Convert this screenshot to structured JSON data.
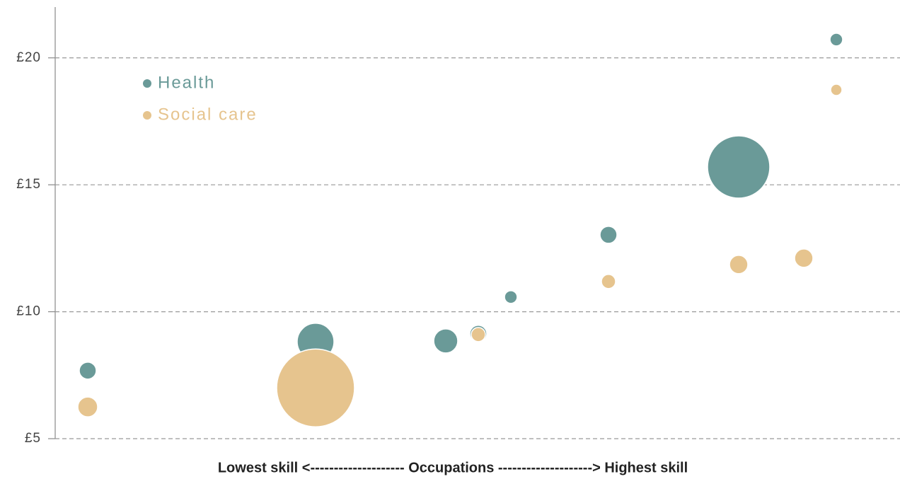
{
  "chart_data": {
    "type": "scatter",
    "x_label": "Lowest skill <--------------------  Occupations  --------------------> Highest skill",
    "xlim": [
      0,
      26
    ],
    "ylim": [
      5,
      22
    ],
    "yticks": [
      {
        "value": 5,
        "label": "£5"
      },
      {
        "value": 10,
        "label": "£10"
      },
      {
        "value": 15,
        "label": "£15"
      },
      {
        "value": 20,
        "label": "£20"
      }
    ],
    "grid": true,
    "legend": "upper left",
    "series": [
      {
        "name": "Health",
        "color": "#6a9a98",
        "x": [
          1,
          8,
          12,
          13,
          14,
          17,
          21,
          24
        ],
        "values": [
          7.68,
          8.82,
          8.85,
          9.13,
          10.58,
          13.03,
          15.7,
          20.72
        ],
        "sizes": [
          36,
          169,
          72,
          36,
          20,
          36,
          484,
          20
        ]
      },
      {
        "name": "Social care",
        "color": "#e6c48e",
        "x": [
          1,
          8,
          13,
          17,
          21,
          23,
          24
        ],
        "values": [
          6.25,
          7.0,
          9.1,
          11.19,
          11.86,
          12.11,
          18.74
        ],
        "sizes": [
          49,
          756,
          25,
          25,
          42,
          42,
          16
        ]
      }
    ]
  }
}
